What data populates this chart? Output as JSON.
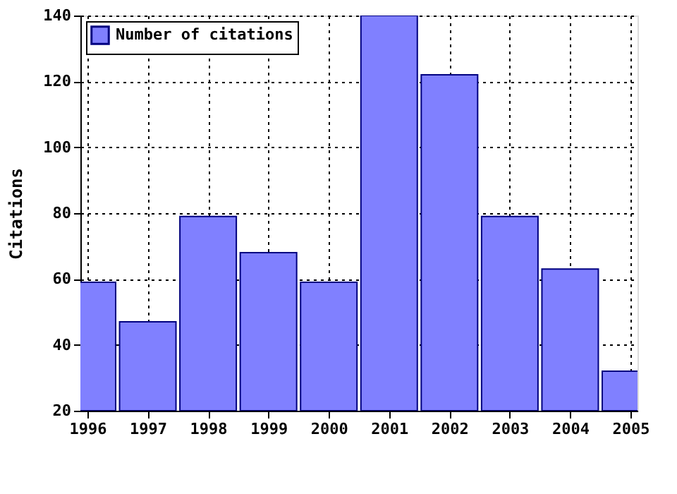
{
  "chart_data": {
    "type": "bar",
    "ylabel": "Citations",
    "x": [
      1996,
      1997,
      1998,
      1999,
      2000,
      2001,
      2002,
      2003,
      2004,
      2005
    ],
    "series": [
      {
        "name": "Number of citations",
        "color": "#8080ff",
        "values": [
          59,
          47,
          79,
          68,
          59,
          140,
          122,
          79,
          63,
          32
        ]
      }
    ],
    "xlim": [
      1996,
      2005
    ],
    "xticks": [
      1996,
      1997,
      1998,
      1999,
      2000,
      2001,
      2002,
      2003,
      2004,
      2005
    ],
    "ylim": [
      20,
      140
    ],
    "yticks": [
      20,
      40,
      60,
      80,
      100,
      120,
      140
    ],
    "grid": true,
    "legend": "top left"
  }
}
